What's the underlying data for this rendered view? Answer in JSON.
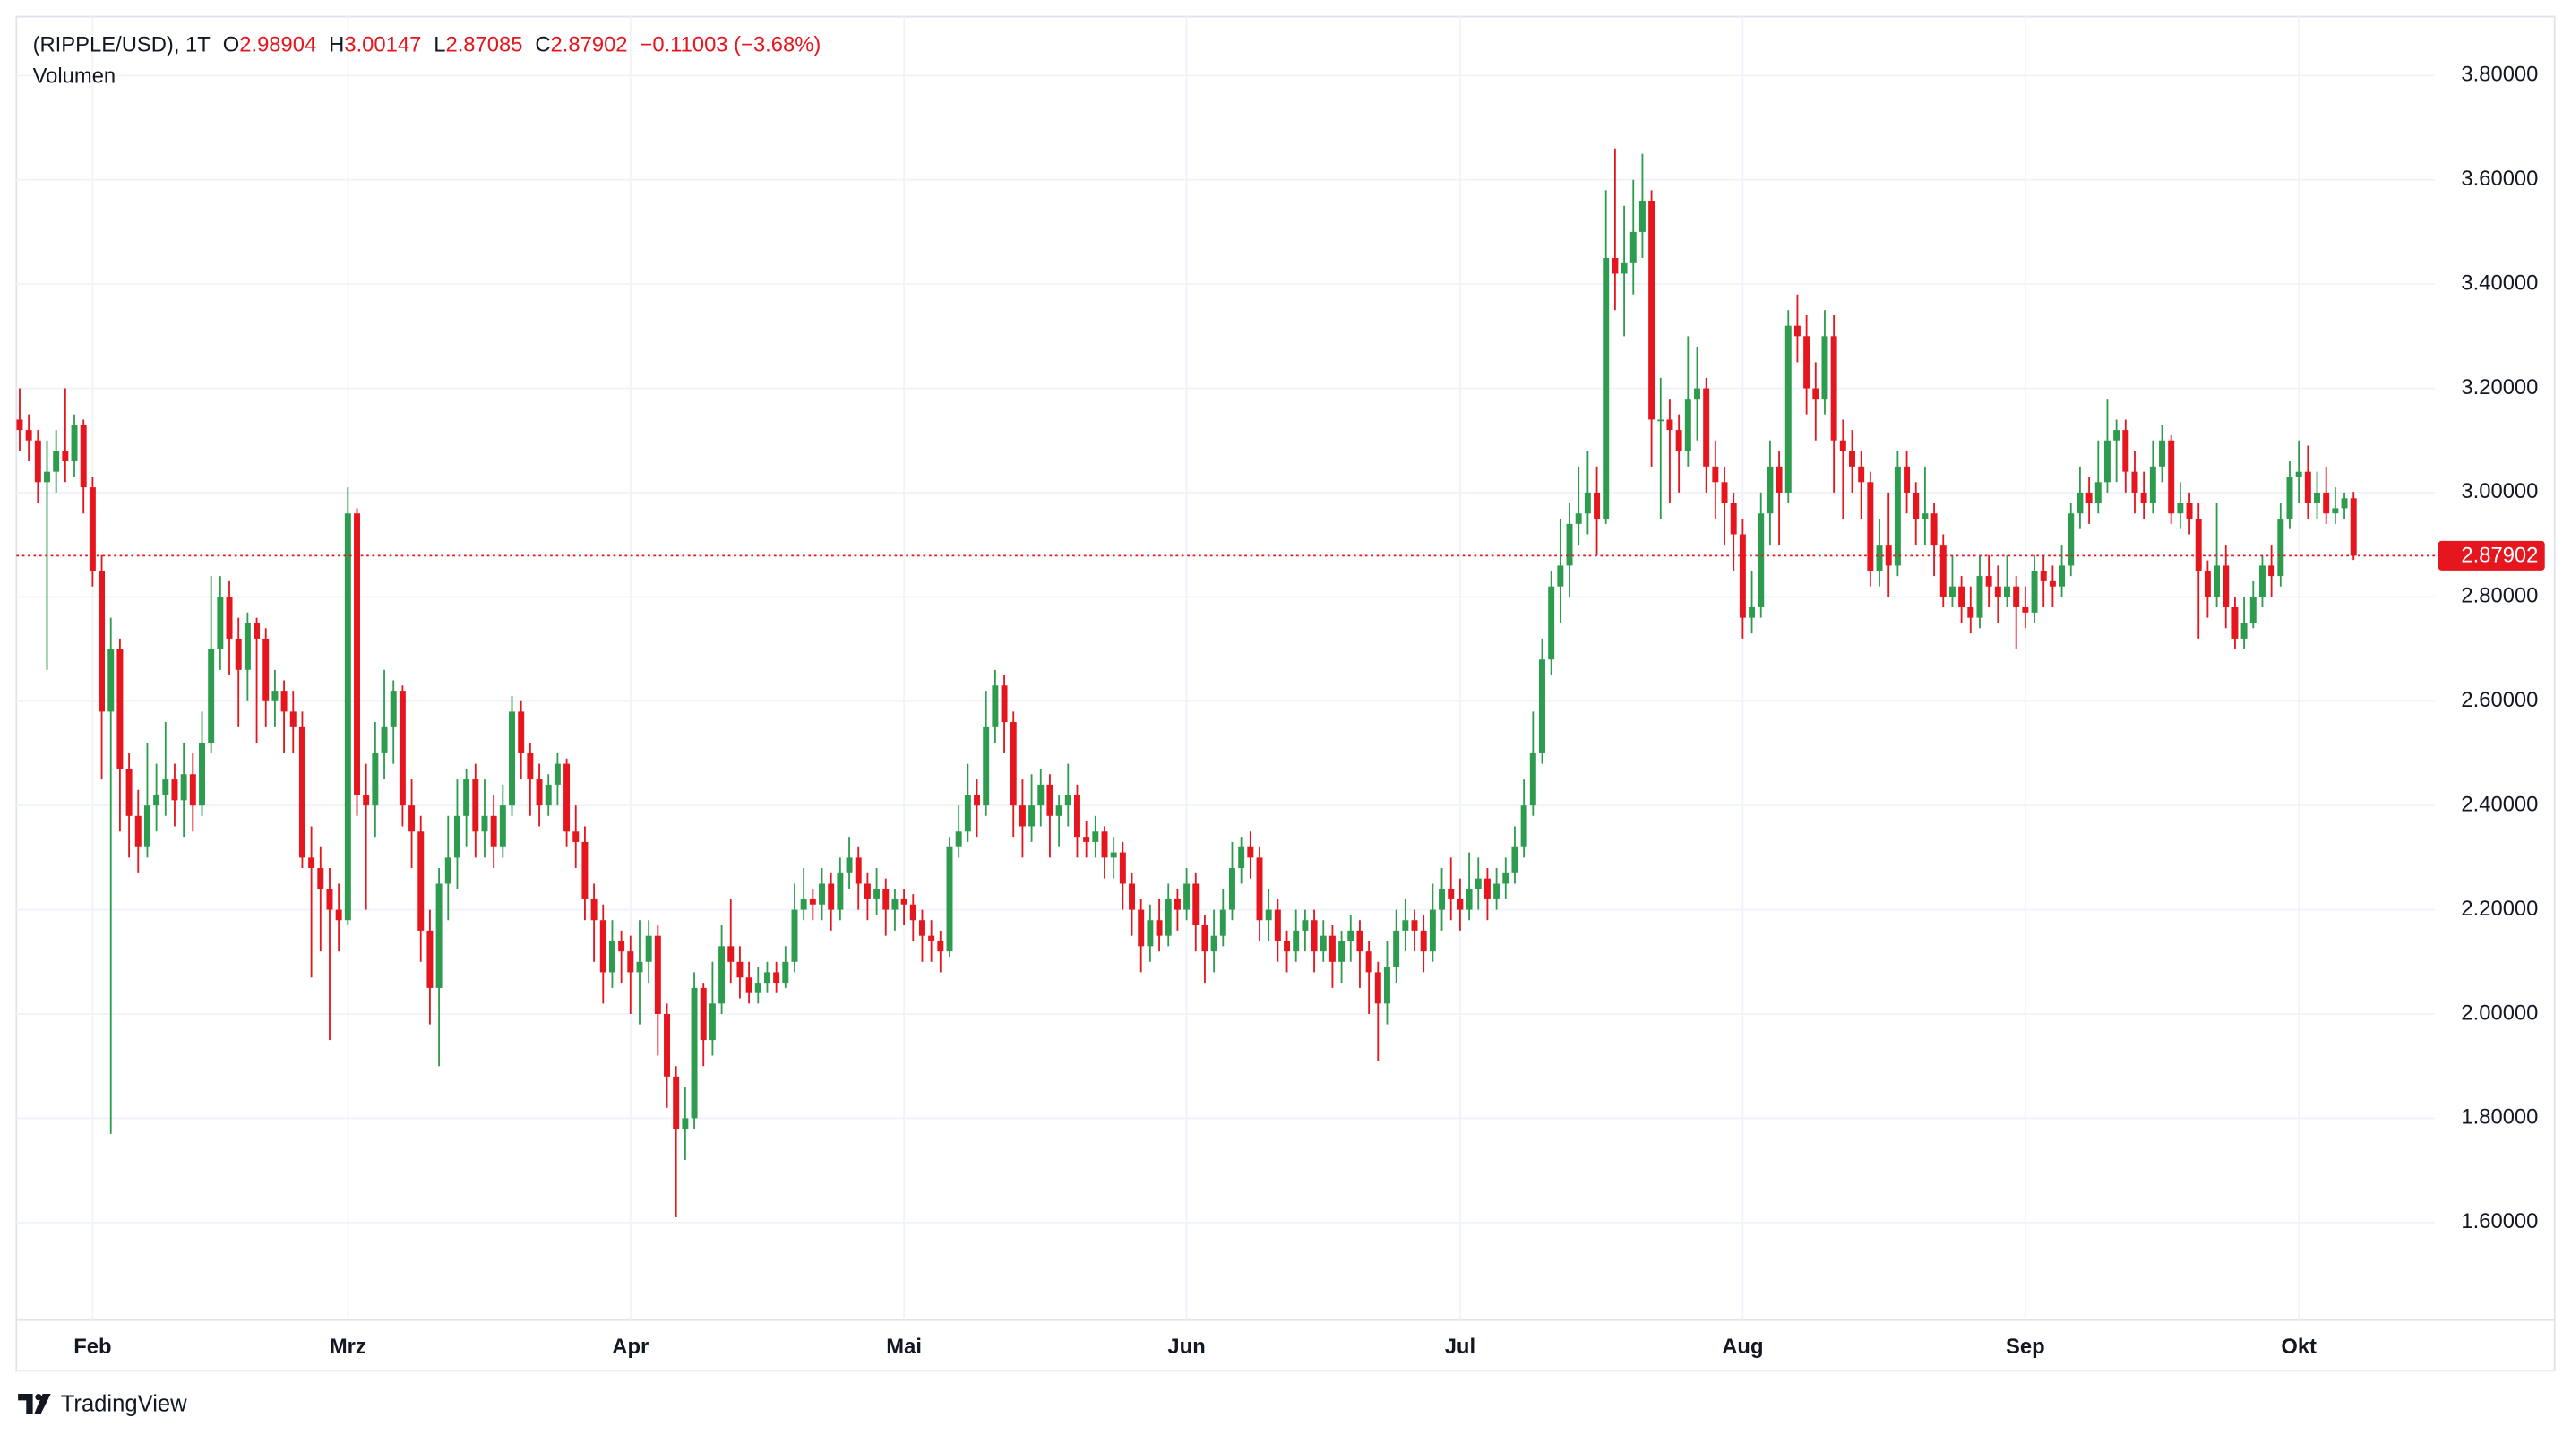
{
  "chart_data": {
    "type": "candlestick",
    "symbol": "(RIPPLE/USD), 1T",
    "ohlc_letters": [
      "O",
      "H",
      "L",
      "C"
    ],
    "change": "−0.11003 (−3.68%)",
    "subtitle": "Volumen",
    "up_color": "#2e9c4f",
    "down_color": "#e5161d",
    "grid": true,
    "ylim": [
      1.413,
      3.913
    ],
    "yticks": [
      {
        "value": 1.6,
        "label": "1.60000"
      },
      {
        "value": 1.8,
        "label": "1.80000"
      },
      {
        "value": 2.0,
        "label": "2.00000"
      },
      {
        "value": 2.2,
        "label": "2.20000"
      },
      {
        "value": 2.4,
        "label": "2.40000"
      },
      {
        "value": 2.6,
        "label": "2.60000"
      },
      {
        "value": 2.8,
        "label": "2.80000"
      },
      {
        "value": 3.0,
        "label": "3.00000"
      },
      {
        "value": 3.2,
        "label": "3.20000"
      },
      {
        "value": 3.4,
        "label": "3.40000"
      },
      {
        "value": 3.6,
        "label": "3.60000"
      },
      {
        "value": 3.8,
        "label": "3.80000"
      }
    ],
    "categories": [
      null,
      null,
      null,
      null,
      null,
      null,
      null,
      null,
      "Feb",
      null,
      null,
      null,
      null,
      null,
      null,
      null,
      null,
      null,
      null,
      null,
      null,
      null,
      null,
      null,
      null,
      null,
      null,
      null,
      null,
      null,
      null,
      null,
      null,
      null,
      null,
      null,
      "Mrz",
      null,
      null,
      null,
      null,
      null,
      null,
      null,
      null,
      null,
      null,
      null,
      null,
      null,
      null,
      null,
      null,
      null,
      null,
      null,
      null,
      null,
      null,
      null,
      null,
      null,
      null,
      null,
      null,
      null,
      null,
      "Apr",
      null,
      null,
      null,
      null,
      null,
      null,
      null,
      null,
      null,
      null,
      null,
      null,
      null,
      null,
      null,
      null,
      null,
      null,
      null,
      null,
      null,
      null,
      null,
      null,
      null,
      null,
      null,
      null,
      null,
      "Mai",
      null,
      null,
      null,
      null,
      null,
      null,
      null,
      null,
      null,
      null,
      null,
      null,
      null,
      null,
      null,
      null,
      null,
      null,
      null,
      null,
      null,
      null,
      null,
      null,
      null,
      null,
      null,
      null,
      null,
      null,
      "Jun",
      null,
      null,
      null,
      null,
      null,
      null,
      null,
      null,
      null,
      null,
      null,
      null,
      null,
      null,
      null,
      null,
      null,
      null,
      null,
      null,
      null,
      null,
      null,
      null,
      null,
      null,
      null,
      null,
      null,
      "Jul",
      null,
      null,
      null,
      null,
      null,
      null,
      null,
      null,
      null,
      null,
      null,
      null,
      null,
      null,
      null,
      null,
      null,
      null,
      null,
      null,
      null,
      null,
      null,
      null,
      null,
      null,
      null,
      null,
      null,
      null,
      "Aug",
      null,
      null,
      null,
      null,
      null,
      null,
      null,
      null,
      null,
      null,
      null,
      null,
      null,
      null,
      null,
      null,
      null,
      null,
      null,
      null,
      null,
      null,
      null,
      null,
      null,
      null,
      null,
      null,
      null,
      null,
      "Sep",
      null,
      null,
      null,
      null,
      null,
      null,
      null,
      null,
      null,
      null,
      null,
      null,
      null,
      null,
      null,
      null,
      null,
      null,
      null,
      null,
      null,
      null,
      null,
      null,
      null,
      null,
      null,
      null,
      null,
      "Okt",
      null,
      null,
      null,
      null,
      null,
      null
    ],
    "open": [
      3.14,
      3.12,
      3.1,
      3.02,
      3.04,
      3.08,
      3.06,
      3.13,
      3.01,
      2.85,
      2.58,
      2.7,
      2.47,
      2.38,
      2.32,
      2.4,
      2.42,
      2.45,
      2.41,
      2.46,
      2.4,
      2.52,
      2.7,
      2.8,
      2.72,
      2.66,
      2.75,
      2.72,
      2.6,
      2.62,
      2.58,
      2.55,
      2.3,
      2.28,
      2.24,
      2.2,
      2.18,
      2.96,
      2.42,
      2.4,
      2.5,
      2.55,
      2.62,
      2.4,
      2.35,
      2.16,
      2.05,
      2.25,
      2.3,
      2.38,
      2.45,
      2.35,
      2.38,
      2.32,
      2.4,
      2.58,
      2.5,
      2.45,
      2.4,
      2.44,
      2.48,
      2.35,
      2.33,
      2.22,
      2.18,
      2.08,
      2.14,
      2.12,
      2.08,
      2.1,
      2.15,
      2.0,
      1.88,
      1.78,
      1.8,
      2.05,
      1.95,
      2.02,
      2.13,
      2.1,
      2.07,
      2.04,
      2.06,
      2.08,
      2.06,
      2.1,
      2.2,
      2.22,
      2.21,
      2.25,
      2.2,
      2.27,
      2.3,
      2.25,
      2.22,
      2.24,
      2.2,
      2.22,
      2.21,
      2.18,
      2.15,
      2.14,
      2.12,
      2.32,
      2.35,
      2.42,
      2.4,
      2.55,
      2.63,
      2.56,
      2.4,
      2.36,
      2.4,
      2.44,
      2.38,
      2.4,
      2.42,
      2.34,
      2.33,
      2.35,
      2.3,
      2.31,
      2.25,
      2.2,
      2.13,
      2.18,
      2.15,
      2.22,
      2.2,
      2.25,
      2.17,
      2.12,
      2.15,
      2.2,
      2.28,
      2.32,
      2.3,
      2.18,
      2.2,
      2.14,
      2.12,
      2.16,
      2.18,
      2.12,
      2.15,
      2.1,
      2.14,
      2.16,
      2.12,
      2.08,
      2.02,
      2.09,
      2.16,
      2.18,
      2.16,
      2.12,
      2.2,
      2.24,
      2.22,
      2.2,
      2.24,
      2.26,
      2.22,
      2.25,
      2.27,
      2.32,
      2.4,
      2.5,
      2.68,
      2.82,
      2.86,
      2.94,
      2.96,
      3.0,
      2.95,
      3.45,
      3.42,
      3.44,
      3.5,
      3.56,
      3.14,
      3.14,
      3.12,
      3.08,
      3.18,
      3.2,
      3.05,
      3.02,
      2.98,
      2.92,
      2.76,
      2.78,
      2.96,
      3.05,
      3.0,
      3.32,
      3.3,
      3.2,
      3.18,
      3.3,
      3.1,
      3.08,
      3.05,
      3.02,
      2.85,
      2.9,
      2.86,
      3.05,
      3.0,
      2.95,
      2.96,
      2.9,
      2.8,
      2.82,
      2.78,
      2.76,
      2.84,
      2.82,
      2.8,
      2.82,
      2.78,
      2.77,
      2.85,
      2.83,
      2.82,
      2.86,
      2.96,
      3.0,
      2.98,
      3.02,
      3.1,
      3.12,
      3.04,
      3.0,
      2.98,
      3.05,
      3.1,
      2.96,
      2.98,
      2.95,
      2.85,
      2.8,
      2.86,
      2.78,
      2.72,
      2.75,
      2.8,
      2.86,
      2.84,
      2.95,
      3.03,
      3.04,
      2.98,
      3.0,
      2.96,
      2.97,
      2.98904
    ],
    "high": [
      3.2,
      3.15,
      3.12,
      3.1,
      3.12,
      3.2,
      3.15,
      3.14,
      3.03,
      2.88,
      2.76,
      2.72,
      2.5,
      2.43,
      2.52,
      2.48,
      2.56,
      2.48,
      2.52,
      2.5,
      2.58,
      2.84,
      2.84,
      2.83,
      2.76,
      2.77,
      2.76,
      2.74,
      2.66,
      2.64,
      2.62,
      2.58,
      2.36,
      2.32,
      2.28,
      2.25,
      3.01,
      2.97,
      2.48,
      2.56,
      2.66,
      2.64,
      2.63,
      2.45,
      2.38,
      2.2,
      2.28,
      2.38,
      2.45,
      2.47,
      2.48,
      2.45,
      2.42,
      2.44,
      2.61,
      2.6,
      2.52,
      2.48,
      2.46,
      2.5,
      2.49,
      2.4,
      2.36,
      2.25,
      2.21,
      2.18,
      2.16,
      2.15,
      2.18,
      2.18,
      2.17,
      2.02,
      1.9,
      1.86,
      2.08,
      2.06,
      2.1,
      2.17,
      2.22,
      2.13,
      2.1,
      2.09,
      2.1,
      2.1,
      2.13,
      2.25,
      2.28,
      2.24,
      2.28,
      2.27,
      2.3,
      2.34,
      2.32,
      2.27,
      2.28,
      2.26,
      2.24,
      2.24,
      2.23,
      2.2,
      2.18,
      2.16,
      2.34,
      2.4,
      2.48,
      2.45,
      2.62,
      2.66,
      2.65,
      2.58,
      2.45,
      2.46,
      2.47,
      2.46,
      2.42,
      2.48,
      2.44,
      2.37,
      2.38,
      2.36,
      2.34,
      2.33,
      2.27,
      2.22,
      2.21,
      2.22,
      2.25,
      2.24,
      2.28,
      2.27,
      2.19,
      2.2,
      2.24,
      2.33,
      2.34,
      2.35,
      2.32,
      2.24,
      2.22,
      2.16,
      2.2,
      2.2,
      2.2,
      2.18,
      2.17,
      2.16,
      2.19,
      2.18,
      2.14,
      2.1,
      2.14,
      2.2,
      2.22,
      2.2,
      2.19,
      2.25,
      2.28,
      2.3,
      2.26,
      2.31,
      2.3,
      2.28,
      2.28,
      2.3,
      2.36,
      2.45,
      2.58,
      2.72,
      2.85,
      2.95,
      2.98,
      3.05,
      3.08,
      3.05,
      3.58,
      3.66,
      3.55,
      3.6,
      3.65,
      3.58,
      3.22,
      3.18,
      3.15,
      3.3,
      3.28,
      3.22,
      3.1,
      3.05,
      3.0,
      2.95,
      2.85,
      3.0,
      3.1,
      3.08,
      3.35,
      3.38,
      3.34,
      3.25,
      3.35,
      3.34,
      3.14,
      3.12,
      3.08,
      3.04,
      2.95,
      3.0,
      3.08,
      3.08,
      3.02,
      3.05,
      2.98,
      2.92,
      2.88,
      2.84,
      2.82,
      2.88,
      2.88,
      2.86,
      2.88,
      2.84,
      2.82,
      2.88,
      2.88,
      2.86,
      2.9,
      2.98,
      3.05,
      3.03,
      3.1,
      3.18,
      3.14,
      3.14,
      3.08,
      3.04,
      3.1,
      3.13,
      3.11,
      3.02,
      3.0,
      2.98,
      2.87,
      2.98,
      2.9,
      2.8,
      2.8,
      2.83,
      2.88,
      2.9,
      2.98,
      3.06,
      3.1,
      3.09,
      3.04,
      3.05,
      3.01,
      3.0,
      3.00147
    ],
    "low": [
      3.08,
      3.06,
      2.98,
      2.66,
      3.0,
      3.02,
      3.03,
      2.96,
      2.82,
      2.45,
      1.77,
      2.35,
      2.3,
      2.27,
      2.3,
      2.35,
      2.38,
      2.36,
      2.34,
      2.35,
      2.38,
      2.5,
      2.66,
      2.65,
      2.55,
      2.6,
      2.52,
      2.55,
      2.55,
      2.5,
      2.5,
      2.28,
      2.07,
      2.12,
      1.95,
      2.12,
      2.17,
      2.38,
      2.2,
      2.34,
      2.45,
      2.48,
      2.36,
      2.28,
      2.1,
      1.98,
      1.9,
      2.18,
      2.24,
      2.32,
      2.3,
      2.3,
      2.28,
      2.3,
      2.38,
      2.45,
      2.38,
      2.36,
      2.38,
      2.4,
      2.32,
      2.28,
      2.18,
      2.1,
      2.02,
      2.05,
      2.06,
      2.0,
      1.98,
      2.06,
      1.92,
      1.82,
      1.61,
      1.72,
      1.78,
      1.9,
      1.92,
      2.0,
      2.06,
      2.03,
      2.02,
      2.02,
      2.04,
      2.04,
      2.05,
      2.08,
      2.18,
      2.18,
      2.18,
      2.16,
      2.18,
      2.24,
      2.2,
      2.18,
      2.19,
      2.15,
      2.16,
      2.17,
      2.14,
      2.1,
      2.1,
      2.08,
      2.11,
      2.3,
      2.33,
      2.34,
      2.38,
      2.52,
      2.5,
      2.34,
      2.3,
      2.33,
      2.36,
      2.3,
      2.32,
      2.36,
      2.3,
      2.3,
      2.3,
      2.26,
      2.26,
      2.2,
      2.15,
      2.08,
      2.1,
      2.12,
      2.13,
      2.16,
      2.18,
      2.12,
      2.06,
      2.08,
      2.13,
      2.18,
      2.25,
      2.26,
      2.14,
      2.14,
      2.1,
      2.08,
      2.1,
      2.12,
      2.08,
      2.1,
      2.05,
      2.06,
      2.1,
      2.05,
      2.0,
      1.91,
      1.98,
      2.06,
      2.12,
      2.12,
      2.08,
      2.1,
      2.16,
      2.18,
      2.16,
      2.18,
      2.2,
      2.18,
      2.2,
      2.22,
      2.25,
      2.3,
      2.38,
      2.48,
      2.65,
      2.75,
      2.8,
      2.9,
      2.92,
      2.88,
      2.94,
      3.35,
      3.3,
      3.38,
      3.45,
      3.05,
      2.95,
      2.98,
      3.0,
      3.05,
      3.1,
      3.0,
      2.95,
      2.9,
      2.85,
      2.72,
      2.73,
      2.76,
      2.9,
      2.9,
      2.98,
      3.25,
      3.15,
      3.1,
      3.15,
      3.0,
      2.95,
      3.0,
      2.95,
      2.82,
      2.82,
      2.8,
      2.84,
      2.96,
      2.9,
      2.9,
      2.84,
      2.78,
      2.78,
      2.75,
      2.73,
      2.74,
      2.78,
      2.75,
      2.78,
      2.7,
      2.74,
      2.75,
      2.78,
      2.78,
      2.8,
      2.84,
      2.93,
      2.94,
      2.96,
      3.0,
      3.02,
      3.0,
      2.96,
      2.95,
      2.96,
      3.02,
      2.94,
      2.93,
      2.92,
      2.72,
      2.76,
      2.78,
      2.74,
      2.7,
      2.7,
      2.74,
      2.78,
      2.8,
      2.82,
      2.93,
      2.98,
      2.95,
      2.95,
      2.94,
      2.94,
      2.95,
      2.87085
    ],
    "close": [
      3.12,
      3.1,
      3.02,
      3.04,
      3.08,
      3.06,
      3.13,
      3.01,
      2.85,
      2.58,
      2.7,
      2.47,
      2.38,
      2.32,
      2.4,
      2.42,
      2.45,
      2.41,
      2.46,
      2.4,
      2.52,
      2.7,
      2.8,
      2.72,
      2.66,
      2.75,
      2.72,
      2.6,
      2.62,
      2.58,
      2.55,
      2.3,
      2.28,
      2.24,
      2.2,
      2.18,
      2.96,
      2.42,
      2.4,
      2.5,
      2.55,
      2.62,
      2.4,
      2.35,
      2.16,
      2.05,
      2.25,
      2.3,
      2.38,
      2.45,
      2.35,
      2.38,
      2.32,
      2.4,
      2.58,
      2.5,
      2.45,
      2.4,
      2.44,
      2.48,
      2.35,
      2.33,
      2.22,
      2.18,
      2.08,
      2.14,
      2.12,
      2.08,
      2.1,
      2.15,
      2.0,
      1.88,
      1.78,
      1.8,
      2.05,
      1.95,
      2.02,
      2.13,
      2.1,
      2.07,
      2.04,
      2.06,
      2.08,
      2.06,
      2.1,
      2.2,
      2.22,
      2.21,
      2.25,
      2.2,
      2.27,
      2.3,
      2.25,
      2.22,
      2.24,
      2.2,
      2.22,
      2.21,
      2.18,
      2.15,
      2.14,
      2.12,
      2.32,
      2.35,
      2.42,
      2.4,
      2.55,
      2.63,
      2.56,
      2.4,
      2.36,
      2.4,
      2.44,
      2.38,
      2.4,
      2.42,
      2.34,
      2.33,
      2.35,
      2.3,
      2.31,
      2.25,
      2.2,
      2.13,
      2.18,
      2.15,
      2.22,
      2.2,
      2.25,
      2.17,
      2.12,
      2.15,
      2.2,
      2.28,
      2.32,
      2.3,
      2.18,
      2.2,
      2.14,
      2.12,
      2.16,
      2.18,
      2.12,
      2.15,
      2.1,
      2.14,
      2.16,
      2.12,
      2.08,
      2.02,
      2.09,
      2.16,
      2.18,
      2.16,
      2.12,
      2.2,
      2.24,
      2.22,
      2.2,
      2.24,
      2.26,
      2.22,
      2.25,
      2.27,
      2.32,
      2.4,
      2.5,
      2.68,
      2.82,
      2.86,
      2.94,
      2.96,
      3.0,
      2.95,
      3.45,
      3.42,
      3.44,
      3.5,
      3.56,
      3.14,
      3.14,
      3.12,
      3.08,
      3.18,
      3.2,
      3.05,
      3.02,
      2.98,
      2.92,
      2.76,
      2.78,
      2.96,
      3.05,
      3.0,
      3.32,
      3.3,
      3.2,
      3.18,
      3.3,
      3.1,
      3.08,
      3.05,
      3.02,
      2.85,
      2.9,
      2.86,
      3.05,
      3.0,
      2.95,
      2.96,
      2.9,
      2.8,
      2.82,
      2.78,
      2.76,
      2.84,
      2.82,
      2.8,
      2.82,
      2.78,
      2.77,
      2.85,
      2.83,
      2.82,
      2.86,
      2.96,
      3.0,
      2.98,
      3.02,
      3.1,
      3.12,
      3.04,
      3.0,
      2.98,
      3.05,
      3.1,
      2.96,
      2.98,
      2.95,
      2.85,
      2.8,
      2.86,
      2.78,
      2.72,
      2.75,
      2.8,
      2.86,
      2.84,
      2.95,
      3.03,
      3.04,
      2.98,
      3.0,
      2.96,
      2.97,
      2.98904,
      2.87902
    ]
  },
  "footer": {
    "brand": "TradingView"
  }
}
